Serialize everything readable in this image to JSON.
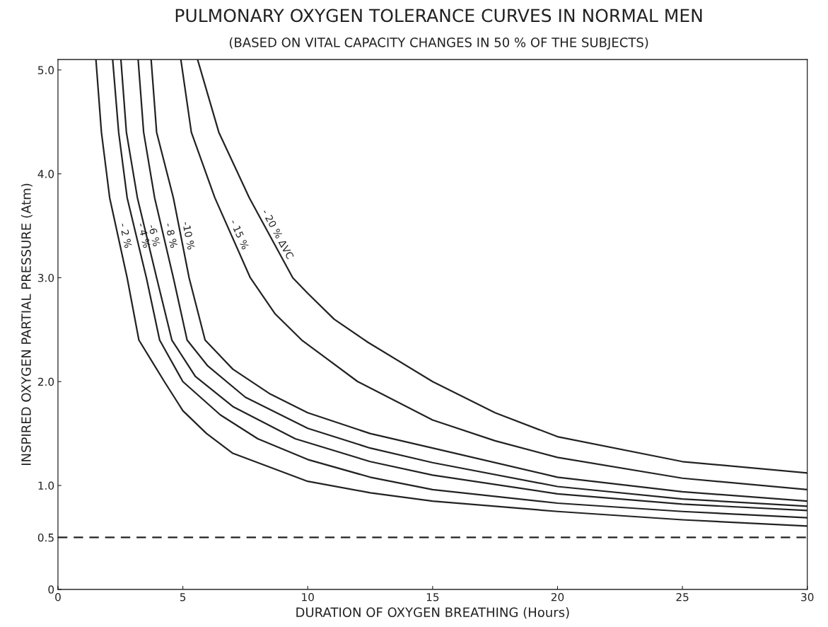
{
  "chart_data": {
    "type": "line",
    "title": "PULMONARY OXYGEN TOLERANCE CURVES IN NORMAL MEN",
    "subtitle": "(BASED ON VITAL CAPACITY CHANGES IN 50 % OF THE SUBJECTS)",
    "xlabel": "DURATION OF OXYGEN BREATHING (Hours)",
    "ylabel": "INSPIRED OXYGEN PARTIAL PRESSURE (Atm)",
    "series": [
      {
        "name": "- 2 %",
        "color": "#222222",
        "x": [
          1.52,
          1.74,
          2.07,
          2.77,
          3.24,
          4.26,
          5,
          5.95,
          7,
          10,
          12.5,
          15,
          20,
          25,
          30
        ],
        "values": [
          5.1,
          4.4,
          3.77,
          3.0,
          2.4,
          2.0,
          1.72,
          1.5,
          1.31,
          1.04,
          0.93,
          0.85,
          0.75,
          0.67,
          0.61
        ]
      },
      {
        "name": "- 4 %",
        "color": "#222222",
        "x": [
          2.19,
          2.43,
          2.77,
          3.54,
          4.07,
          5,
          6.5,
          8,
          10,
          12.5,
          15,
          20,
          25,
          30
        ],
        "values": [
          5.1,
          4.4,
          3.77,
          3.0,
          2.4,
          2.0,
          1.68,
          1.45,
          1.25,
          1.08,
          0.96,
          0.83,
          0.75,
          0.69
        ]
      },
      {
        "name": "-6 %",
        "color": "#222222",
        "x": [
          2.52,
          2.74,
          3.18,
          3.95,
          4.56,
          5.5,
          7,
          9.5,
          12.5,
          15,
          20,
          25,
          30
        ],
        "values": [
          5.1,
          4.4,
          3.77,
          3.0,
          2.4,
          2.05,
          1.76,
          1.45,
          1.23,
          1.1,
          0.92,
          0.82,
          0.76
        ]
      },
      {
        "name": "- 8 %",
        "color": "#222222",
        "x": [
          3.21,
          3.43,
          3.87,
          4.62,
          5.17,
          6,
          7.5,
          10,
          12.5,
          15,
          20,
          25,
          30
        ],
        "values": [
          5.1,
          4.4,
          3.77,
          3.0,
          2.4,
          2.15,
          1.85,
          1.55,
          1.36,
          1.22,
          0.99,
          0.87,
          0.8
        ]
      },
      {
        "name": "-10 %",
        "color": "#222222",
        "x": [
          3.73,
          3.95,
          4.62,
          5.25,
          5.89,
          7,
          8.5,
          10,
          12.5,
          15,
          20,
          25,
          30
        ],
        "values": [
          5.1,
          4.4,
          3.77,
          3.0,
          2.4,
          2.12,
          1.88,
          1.7,
          1.5,
          1.36,
          1.08,
          0.94,
          0.85
        ]
      },
      {
        "name": "- 15 %",
        "color": "#222222",
        "x": [
          4.92,
          5.34,
          6.28,
          7.7,
          8.7,
          9.76,
          12,
          15,
          17.5,
          20,
          25,
          30
        ],
        "values": [
          5.1,
          4.4,
          3.77,
          3.0,
          2.65,
          2.4,
          2.0,
          1.63,
          1.43,
          1.27,
          1.07,
          0.96
        ]
      },
      {
        "name": "- 20 % ΔVC",
        "color": "#222222",
        "x": [
          5.59,
          6.44,
          7.66,
          9.4,
          10,
          11.06,
          12.4,
          15,
          17.5,
          20,
          25,
          30
        ],
        "values": [
          5.1,
          4.4,
          3.77,
          3.0,
          2.85,
          2.6,
          2.38,
          2.0,
          1.7,
          1.47,
          1.23,
          1.12
        ]
      }
    ],
    "ref_lines": [
      {
        "axis": "y",
        "value": 0.5,
        "color": "#222222",
        "line_style": "dashed"
      }
    ],
    "xlim": [
      0,
      30
    ],
    "ylim": [
      0,
      5.1
    ],
    "xticks": [
      0,
      5,
      10,
      15,
      20,
      25,
      30
    ],
    "yticks": [
      0,
      0.5,
      {
        "value": 1,
        "label": "1.0"
      },
      {
        "value": 2,
        "label": "2.0"
      },
      {
        "value": 3,
        "label": "3.0"
      },
      {
        "value": 4,
        "label": "4.0"
      },
      {
        "value": 5,
        "label": "5.0"
      }
    ],
    "grid": false,
    "legend": false,
    "marker": "none",
    "line_style": "solid"
  }
}
